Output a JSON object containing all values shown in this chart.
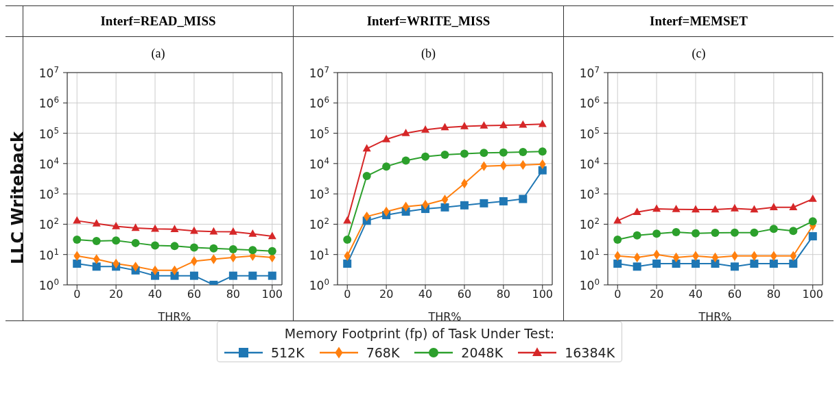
{
  "chart_data": [
    {
      "type": "line",
      "title": "Interf=READ_MISS",
      "subtitle": "(a)",
      "xlabel": "THR%",
      "ylabel": "LLC Writeback",
      "legend_title": "Memory Footprint (fp) of Task Under Test:",
      "legend": "bottom",
      "log": "y",
      "grid": true,
      "line_style": "solid",
      "x": [
        0,
        10,
        20,
        30,
        40,
        50,
        60,
        70,
        80,
        90,
        100
      ],
      "xlim": [
        -5,
        105
      ],
      "xticks": [
        0,
        20,
        40,
        60,
        80,
        100
      ],
      "ylim": [
        1,
        10000000
      ],
      "yticks": [
        {
          "value": 1,
          "label": "10$^{0}$"
        },
        {
          "value": 10,
          "label": "10$^{1}$"
        },
        {
          "value": 100,
          "label": "10$^{2}$"
        },
        {
          "value": 1000,
          "label": "10$^{3}$"
        },
        {
          "value": 10000,
          "label": "10$^{4}$"
        },
        {
          "value": 100000,
          "label": "10$^{5}$"
        },
        {
          "value": 1000000,
          "label": "10$^{6}$"
        },
        {
          "value": 10000000,
          "label": "10$^{7}$"
        }
      ],
      "series": [
        {
          "name": "512K",
          "color": "#1f77b4",
          "marker": "square",
          "values": [
            5,
            4,
            4,
            3,
            2,
            2,
            2,
            1,
            2,
            2,
            2
          ]
        },
        {
          "name": "768K",
          "color": "#ff7f0e",
          "marker": "diamond",
          "values": [
            9,
            7,
            5,
            4,
            3,
            3,
            6,
            7,
            8,
            9,
            8
          ]
        },
        {
          "name": "2048K",
          "color": "#2ca02c",
          "marker": "circle",
          "values": [
            31,
            28,
            29,
            24,
            20,
            19,
            17,
            16,
            15,
            14,
            13
          ]
        },
        {
          "name": "16384K",
          "color": "#d62728",
          "marker": "triangle",
          "values": [
            130,
            105,
            85,
            75,
            70,
            68,
            60,
            57,
            56,
            48,
            40
          ]
        }
      ]
    },
    {
      "type": "line",
      "title": "Interf=WRITE_MISS",
      "subtitle": "(b)",
      "xlabel": "THR%",
      "log": "y",
      "grid": true,
      "line_style": "solid",
      "x": [
        0,
        10,
        20,
        30,
        40,
        50,
        60,
        70,
        80,
        90,
        100
      ],
      "xlim": [
        -5,
        105
      ],
      "xticks": [
        0,
        20,
        40,
        60,
        80,
        100
      ],
      "ylim": [
        1,
        10000000
      ],
      "yticks": [
        {
          "value": 1,
          "label": "10$^{0}$"
        },
        {
          "value": 10,
          "label": "10$^{1}$"
        },
        {
          "value": 100,
          "label": "10$^{2}$"
        },
        {
          "value": 1000,
          "label": "10$^{3}$"
        },
        {
          "value": 10000,
          "label": "10$^{4}$"
        },
        {
          "value": 100000,
          "label": "10$^{5}$"
        },
        {
          "value": 1000000,
          "label": "10$^{6}$"
        },
        {
          "value": 10000000,
          "label": "10$^{7}$"
        }
      ],
      "series": [
        {
          "color": "#1f77b4",
          "marker": "square",
          "values": [
            5,
            130,
            200,
            260,
            320,
            360,
            420,
            490,
            570,
            680,
            6000
          ]
        },
        {
          "color": "#ff7f0e",
          "marker": "diamond",
          "values": [
            9,
            180,
            260,
            380,
            440,
            650,
            2200,
            8200,
            8600,
            9000,
            9500
          ]
        },
        {
          "color": "#2ca02c",
          "marker": "circle",
          "values": [
            31,
            3900,
            8000,
            12500,
            17000,
            19500,
            21000,
            22500,
            23000,
            24000,
            25000
          ]
        },
        {
          "color": "#d62728",
          "marker": "triangle",
          "values": [
            130,
            31000,
            63000,
            100000,
            130000,
            155000,
            168000,
            178000,
            183000,
            190000,
            200000
          ]
        }
      ]
    },
    {
      "type": "line",
      "title": "Interf=MEMSET",
      "subtitle": "(c)",
      "xlabel": "THR%",
      "log": "y",
      "grid": true,
      "line_style": "solid",
      "x": [
        0,
        10,
        20,
        30,
        40,
        50,
        60,
        70,
        80,
        90,
        100
      ],
      "xlim": [
        -5,
        105
      ],
      "xticks": [
        0,
        20,
        40,
        60,
        80,
        100
      ],
      "ylim": [
        1,
        10000000
      ],
      "yticks": [
        {
          "value": 1,
          "label": "10$^{0}$"
        },
        {
          "value": 10,
          "label": "10$^{1}$"
        },
        {
          "value": 100,
          "label": "10$^{2}$"
        },
        {
          "value": 1000,
          "label": "10$^{3}$"
        },
        {
          "value": 10000,
          "label": "10$^{4}$"
        },
        {
          "value": 100000,
          "label": "10$^{5}$"
        },
        {
          "value": 1000000,
          "label": "10$^{6}$"
        },
        {
          "value": 10000000,
          "label": "10$^{7}$"
        }
      ],
      "series": [
        {
          "color": "#1f77b4",
          "marker": "square",
          "values": [
            5,
            4,
            5,
            5,
            5,
            5,
            4,
            5,
            5,
            5,
            40
          ]
        },
        {
          "color": "#ff7f0e",
          "marker": "diamond",
          "values": [
            9,
            8,
            10,
            8,
            9,
            8,
            9,
            9,
            9,
            9,
            90
          ]
        },
        {
          "color": "#2ca02c",
          "marker": "circle",
          "values": [
            31,
            43,
            49,
            55,
            50,
            52,
            53,
            53,
            70,
            60,
            125
          ]
        },
        {
          "color": "#d62728",
          "marker": "triangle",
          "values": [
            130,
            250,
            320,
            310,
            305,
            305,
            330,
            305,
            360,
            360,
            680
          ]
        }
      ]
    }
  ]
}
